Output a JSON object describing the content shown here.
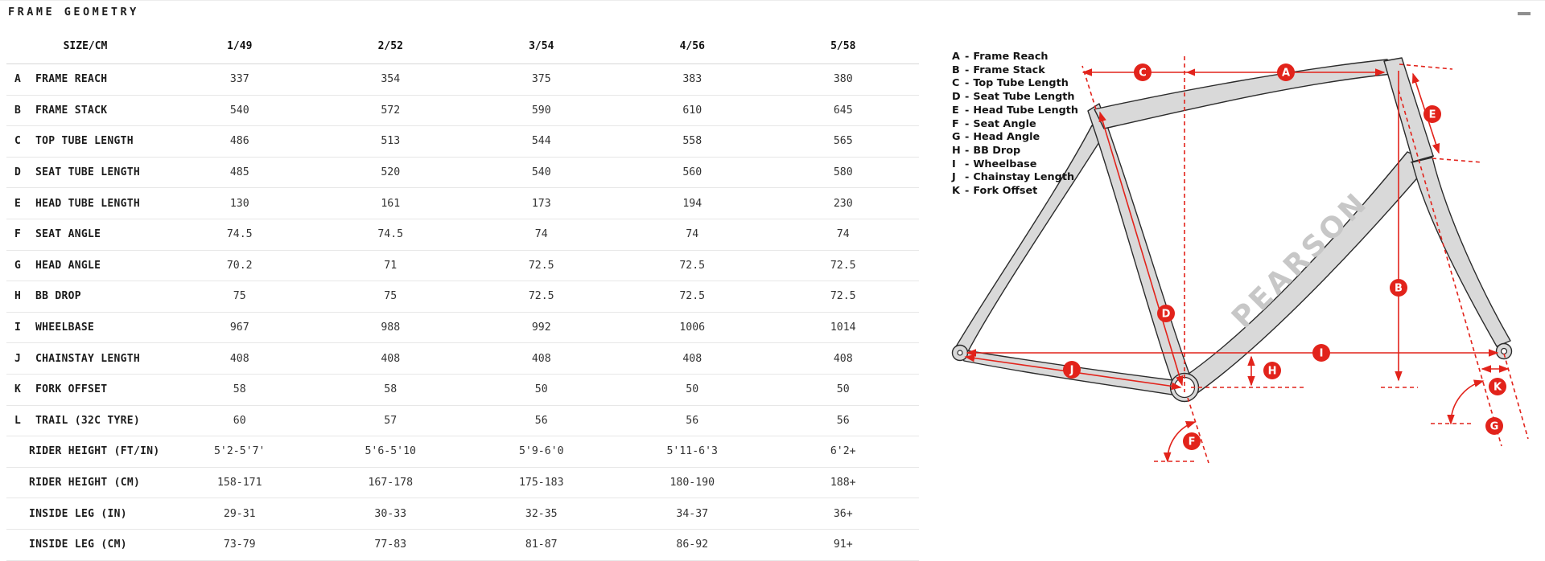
{
  "header": {
    "title": "FRAME GEOMETRY"
  },
  "chart_data": {
    "type": "table",
    "title": "FRAME GEOMETRY",
    "columns": [
      "SIZE/CM",
      "1/49",
      "2/52",
      "3/54",
      "4/56",
      "5/58"
    ],
    "rows": [
      {
        "key": "A",
        "label": "FRAME REACH",
        "values": [
          "337",
          "354",
          "375",
          "383",
          "380"
        ]
      },
      {
        "key": "B",
        "label": "FRAME STACK",
        "values": [
          "540",
          "572",
          "590",
          "610",
          "645"
        ]
      },
      {
        "key": "C",
        "label": "TOP TUBE LENGTH",
        "values": [
          "486",
          "513",
          "544",
          "558",
          "565"
        ]
      },
      {
        "key": "D",
        "label": "SEAT TUBE LENGTH",
        "values": [
          "485",
          "520",
          "540",
          "560",
          "580"
        ]
      },
      {
        "key": "E",
        "label": "HEAD TUBE LENGTH",
        "values": [
          "130",
          "161",
          "173",
          "194",
          "230"
        ]
      },
      {
        "key": "F",
        "label": "SEAT ANGLE",
        "values": [
          "74.5",
          "74.5",
          "74",
          "74",
          "74"
        ]
      },
      {
        "key": "G",
        "label": "HEAD ANGLE",
        "values": [
          "70.2",
          "71",
          "72.5",
          "72.5",
          "72.5"
        ]
      },
      {
        "key": "H",
        "label": "BB DROP",
        "values": [
          "75",
          "75",
          "72.5",
          "72.5",
          "72.5"
        ]
      },
      {
        "key": "I",
        "label": "WHEELBASE",
        "values": [
          "967",
          "988",
          "992",
          "1006",
          "1014"
        ]
      },
      {
        "key": "J",
        "label": "CHAINSTAY LENGTH",
        "values": [
          "408",
          "408",
          "408",
          "408",
          "408"
        ]
      },
      {
        "key": "K",
        "label": "FORK OFFSET",
        "values": [
          "58",
          "58",
          "50",
          "50",
          "50"
        ]
      },
      {
        "key": "L",
        "label": "TRAIL (32C TYRE)",
        "values": [
          "60",
          "57",
          "56",
          "56",
          "56"
        ]
      },
      {
        "key": "",
        "label": "RIDER HEIGHT (FT/IN)",
        "values": [
          "5'2-5'7'",
          "5'6-5'10",
          "5'9-6'0",
          "5'11-6'3",
          "6'2+"
        ]
      },
      {
        "key": "",
        "label": "RIDER HEIGHT (CM)",
        "values": [
          "158-171",
          "167-178",
          "175-183",
          "180-190",
          "188+"
        ]
      },
      {
        "key": "",
        "label": "INSIDE LEG (IN)",
        "values": [
          "29-31",
          "30-33",
          "32-35",
          "34-37",
          "36+"
        ]
      },
      {
        "key": "",
        "label": "INSIDE LEG (CM)",
        "values": [
          "73-79",
          "77-83",
          "81-87",
          "86-92",
          "91+"
        ]
      }
    ]
  },
  "legend": {
    "items": [
      {
        "key": "A",
        "label": "Frame Reach"
      },
      {
        "key": "B",
        "label": "Frame Stack"
      },
      {
        "key": "C",
        "label": "Top Tube Length"
      },
      {
        "key": "D",
        "label": "Seat Tube Length"
      },
      {
        "key": "E",
        "label": "Head Tube Length"
      },
      {
        "key": "F",
        "label": "Seat Angle"
      },
      {
        "key": "G",
        "label": "Head Angle"
      },
      {
        "key": "H",
        "label": "BB Drop"
      },
      {
        "key": "I",
        "label": "Wheelbase"
      },
      {
        "key": "J",
        "label": "Chainstay Length"
      },
      {
        "key": "K",
        "label": "Fork Offset"
      }
    ]
  },
  "diagram": {
    "brand": "PEARSON",
    "badge_letters": [
      "C",
      "A",
      "E",
      "B",
      "D",
      "I",
      "H",
      "J",
      "K",
      "F",
      "G"
    ],
    "colors": {
      "dimension_red": "#e2231b",
      "frame_fill": "#d9d9d9",
      "frame_stroke": "#2b2b2b",
      "brand_text": "#c7c7c7"
    }
  }
}
